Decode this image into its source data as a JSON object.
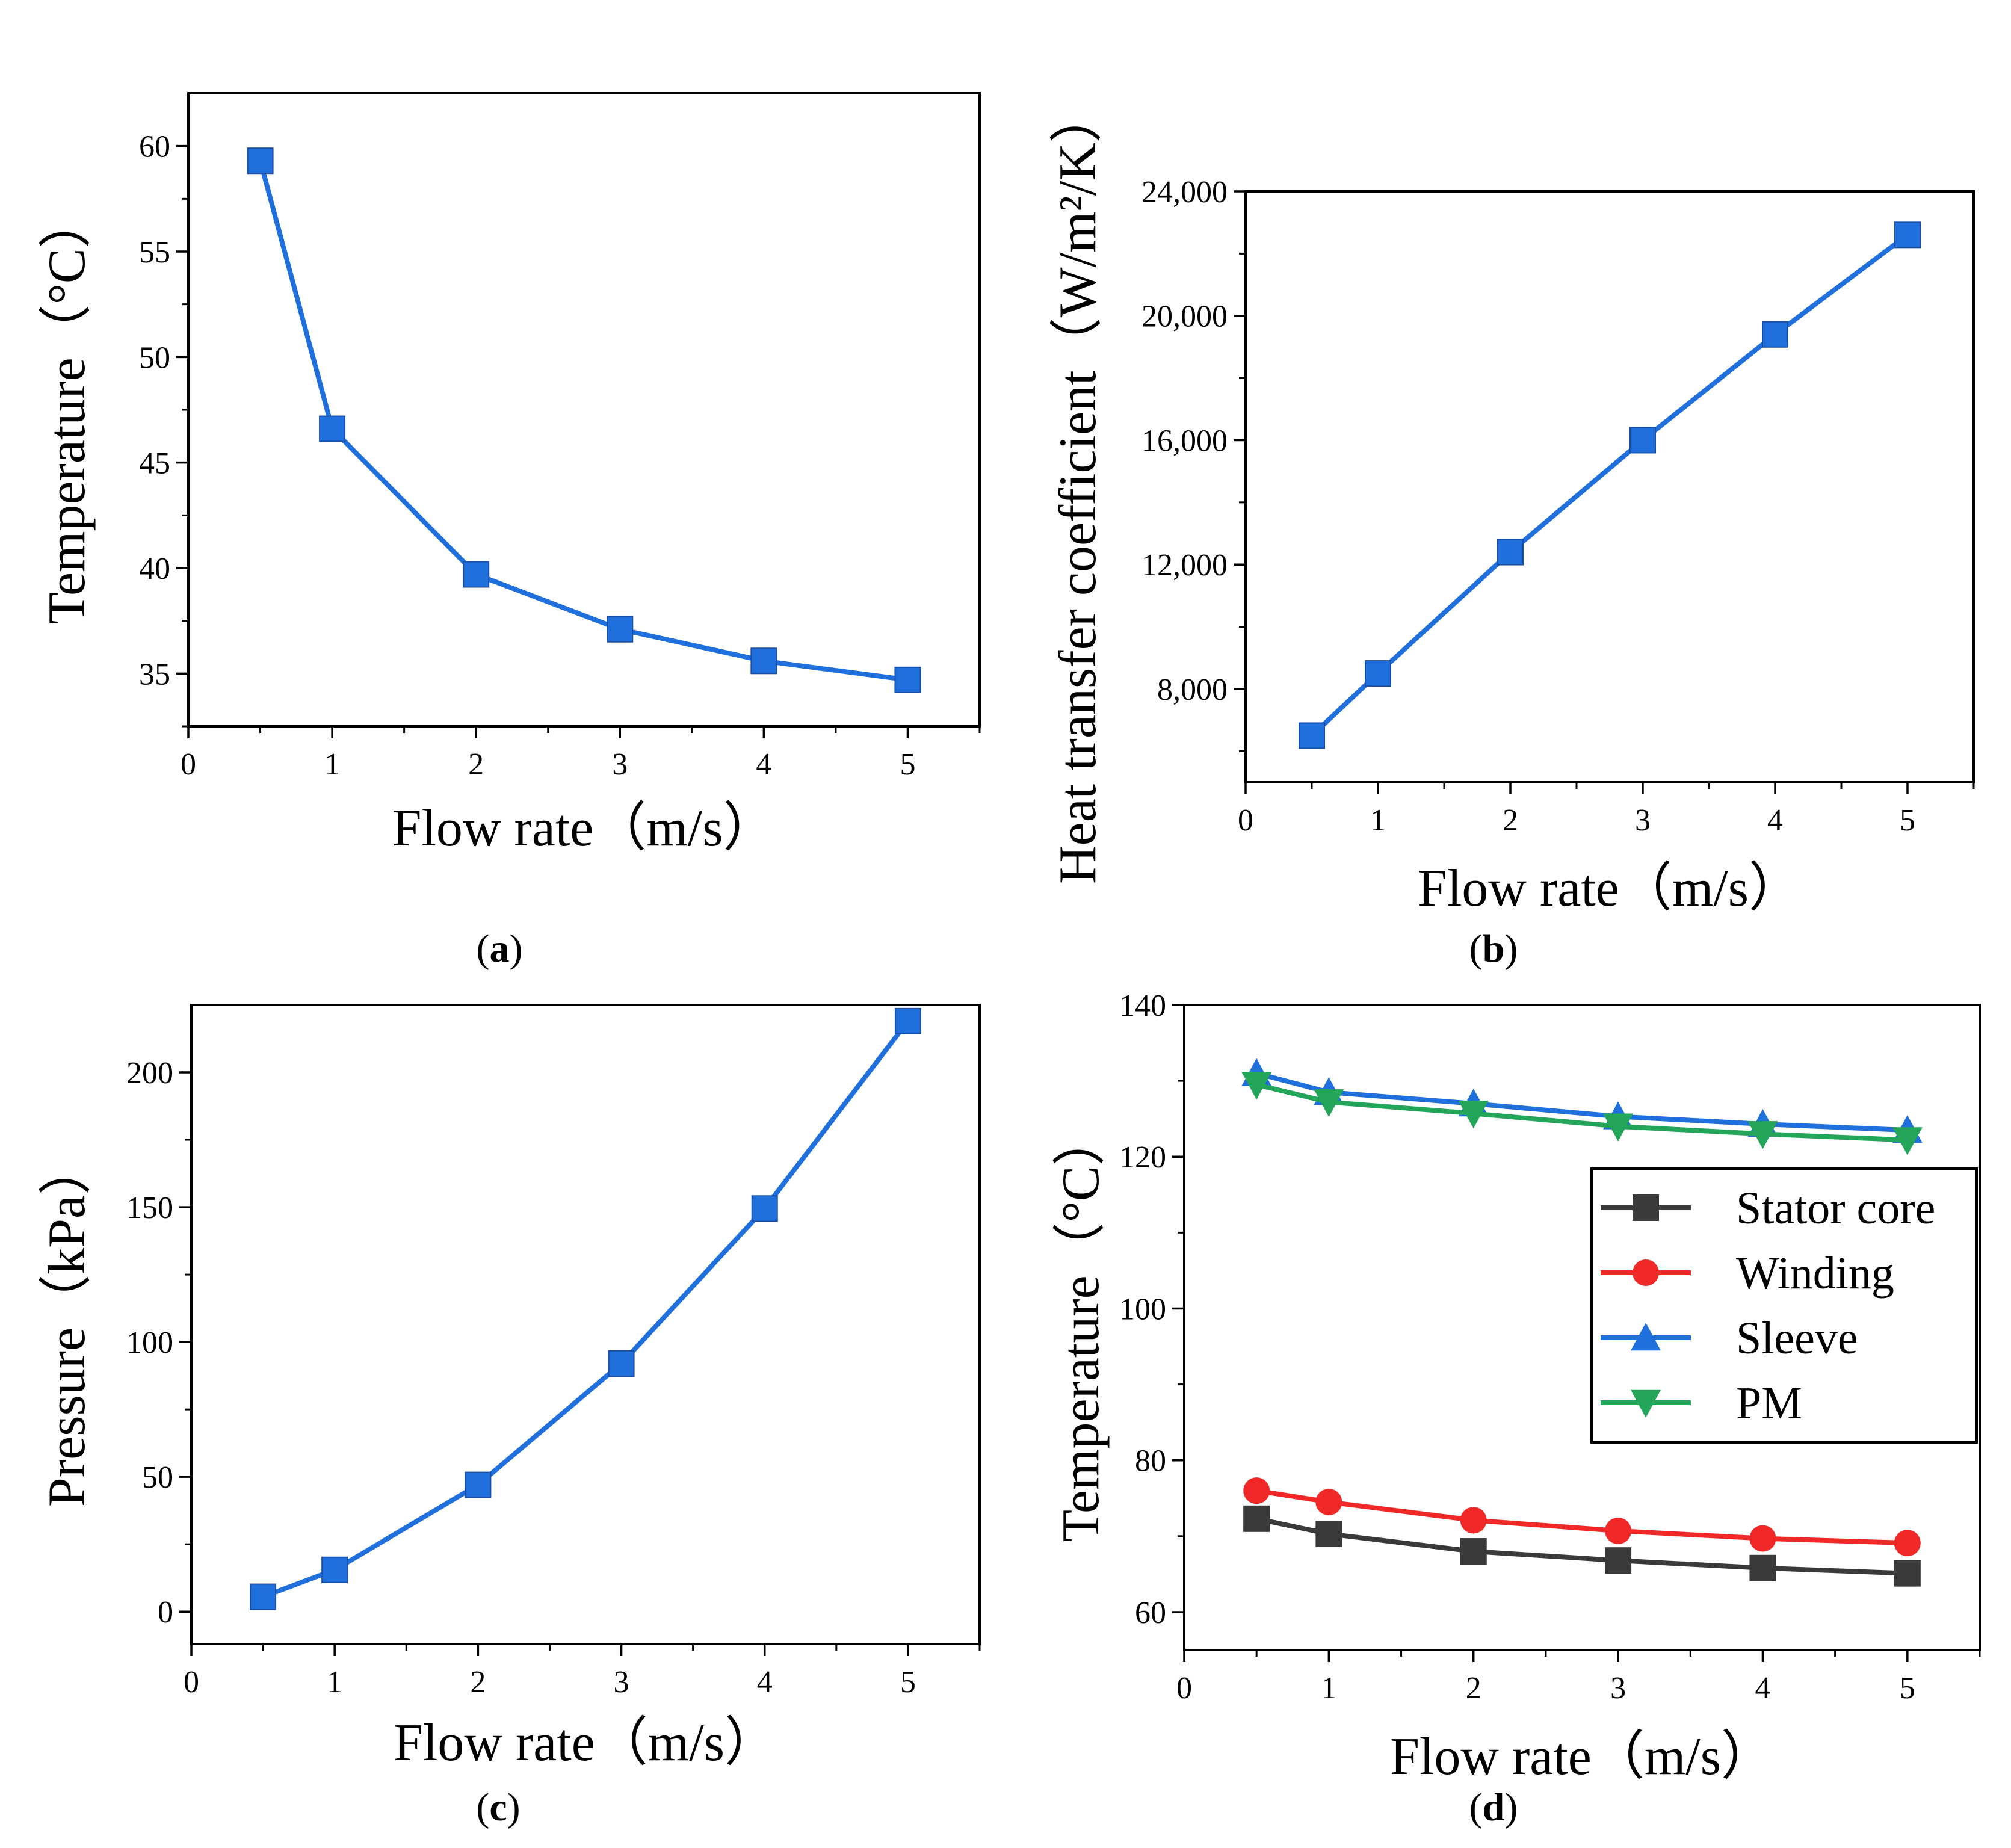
{
  "figure": {
    "colors": {
      "primary": "#1f6fdc",
      "stator": "#3a3a3a",
      "winding": "#f02828",
      "sleeve": "#1f6fdc",
      "pm": "#23a55a"
    }
  },
  "chart_data": [
    {
      "panel": "a",
      "type": "line",
      "caption": {
        "open": "(",
        "letter": "a",
        "close": ")"
      },
      "xlabel": "Flow rate（m/s）",
      "ylabel": "Temperature（°C）",
      "xlim": [
        0,
        5.5
      ],
      "ylim": [
        32.5,
        62.5
      ],
      "xticks": [
        0,
        1,
        2,
        3,
        4,
        5
      ],
      "xtick_labels": [
        "0",
        "1",
        "2",
        "3",
        "4",
        "5"
      ],
      "yticks": [
        35,
        40,
        45,
        50,
        55,
        60
      ],
      "ytick_labels": [
        "35",
        "40",
        "45",
        "50",
        "55",
        "60"
      ],
      "series": [
        {
          "name": "Temperature",
          "marker": "square",
          "color": "#1f6fdc",
          "x": [
            0.5,
            1,
            2,
            3,
            4,
            5
          ],
          "y": [
            59.3,
            46.6,
            39.7,
            37.1,
            35.6,
            34.7
          ]
        }
      ]
    },
    {
      "panel": "b",
      "type": "line",
      "caption": {
        "open": "(",
        "letter": "b",
        "close": ")"
      },
      "xlabel": "Flow rate（m/s）",
      "ylabel": "Heat transfer coefficient（W/m²/K）",
      "xlim": [
        0,
        5.5
      ],
      "ylim": [
        5000,
        24000
      ],
      "xticks": [
        0,
        1,
        2,
        3,
        4,
        5
      ],
      "xtick_labels": [
        "0",
        "1",
        "2",
        "3",
        "4",
        "5"
      ],
      "yticks": [
        8000,
        12000,
        16000,
        20000,
        24000
      ],
      "ytick_labels": [
        "8,000",
        "12,000",
        "16,000",
        "20,000",
        "24,000"
      ],
      "series": [
        {
          "name": "Heat transfer coefficient",
          "marker": "square",
          "color": "#1f6fdc",
          "x": [
            0.5,
            1,
            2,
            3,
            4,
            5
          ],
          "y": [
            6500,
            8500,
            12400,
            16000,
            19400,
            22600
          ]
        }
      ]
    },
    {
      "panel": "c",
      "type": "line",
      "caption": {
        "open": "(",
        "letter": "c",
        "close": ")"
      },
      "xlabel": "Flow rate（m/s）",
      "ylabel": "Pressure（kPa）",
      "xlim": [
        0,
        5.5
      ],
      "ylim": [
        -12,
        225
      ],
      "xticks": [
        0,
        1,
        2,
        3,
        4,
        5
      ],
      "xtick_labels": [
        "0",
        "1",
        "2",
        "3",
        "4",
        "5"
      ],
      "yticks": [
        0,
        50,
        100,
        150,
        200
      ],
      "ytick_labels": [
        "0",
        "50",
        "100",
        "150",
        "200"
      ],
      "series": [
        {
          "name": "Pressure",
          "marker": "square",
          "color": "#1f6fdc",
          "x": [
            0.5,
            1,
            2,
            3,
            4,
            5
          ],
          "y": [
            5.5,
            15.5,
            47,
            92,
            149.5,
            219
          ]
        }
      ]
    },
    {
      "panel": "d",
      "type": "line",
      "caption": {
        "open": "(",
        "letter": "d",
        "close": ")"
      },
      "xlabel": "Flow rate（m/s）",
      "ylabel": "Temperature（°C）",
      "xlim": [
        0,
        5.5
      ],
      "ylim": [
        55,
        140
      ],
      "xticks": [
        0,
        1,
        2,
        3,
        4,
        5
      ],
      "xtick_labels": [
        "0",
        "1",
        "2",
        "3",
        "4",
        "5"
      ],
      "yticks": [
        60,
        80,
        100,
        120,
        140
      ],
      "ytick_labels": [
        "60",
        "80",
        "100",
        "120",
        "140"
      ],
      "legend": "top-right",
      "series": [
        {
          "name": "Stator core",
          "marker": "square",
          "color": "#3a3a3a",
          "x": [
            0.5,
            1,
            2,
            3,
            4,
            5
          ],
          "y": [
            72.3,
            70.3,
            68.0,
            66.8,
            65.8,
            65.1
          ]
        },
        {
          "name": "Winding",
          "marker": "circle",
          "color": "#f02828",
          "x": [
            0.5,
            1,
            2,
            3,
            4,
            5
          ],
          "y": [
            76.0,
            74.5,
            72.1,
            70.7,
            69.7,
            69.1
          ]
        },
        {
          "name": "Sleeve",
          "marker": "triangle-up",
          "color": "#1f6fdc",
          "x": [
            0.5,
            1,
            2,
            3,
            4,
            5
          ],
          "y": [
            131.0,
            128.5,
            127.0,
            125.3,
            124.3,
            123.5
          ]
        },
        {
          "name": "PM",
          "marker": "triangle-down",
          "color": "#23a55a",
          "x": [
            0.5,
            1,
            2,
            3,
            4,
            5
          ],
          "y": [
            129.5,
            127.2,
            125.7,
            124.0,
            123.0,
            122.2
          ]
        }
      ]
    }
  ]
}
